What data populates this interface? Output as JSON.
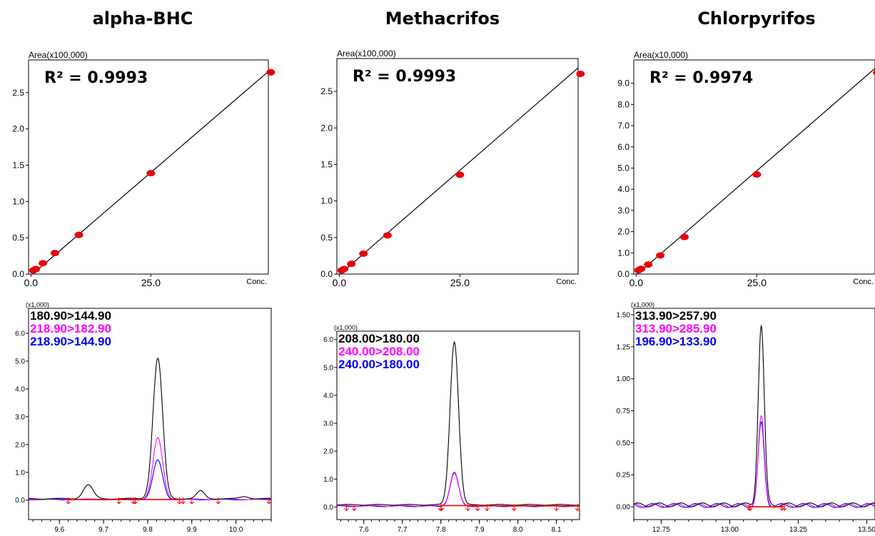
{
  "titles": [
    "alpha-BHC",
    "Methacrifos",
    "Chlorpyrifos"
  ],
  "chart_data": [
    {
      "type": "scatter",
      "panel": "calibration",
      "compound": "alpha-BHC",
      "yunit_label": "Area(x100,000)",
      "xlabel": "Conc.",
      "r2_label": "R² = 0.9993",
      "x_ticks": [
        0.0,
        25.0
      ],
      "x_tick_labels": [
        "0.0",
        "25.0"
      ],
      "y_ticks": [
        0.0,
        0.5,
        1.0,
        1.5,
        2.0,
        2.5
      ],
      "y_tick_labels": [
        "0.0",
        "0.5",
        "1.0",
        "1.5",
        "2.0",
        "2.5"
      ],
      "xlim": [
        -0.5,
        49.5
      ],
      "ylim": [
        0,
        2.95
      ],
      "points": [
        [
          0.5,
          0.05
        ],
        [
          1,
          0.07
        ],
        [
          2.5,
          0.15
        ],
        [
          5,
          0.29
        ],
        [
          10,
          0.54
        ],
        [
          25,
          1.39
        ],
        [
          50,
          2.78
        ]
      ],
      "fit_line": [
        [
          0,
          -0.02
        ],
        [
          50,
          2.82
        ]
      ],
      "colors": {
        "points": "#e8000b",
        "line": "#000000"
      }
    },
    {
      "type": "scatter",
      "panel": "calibration",
      "compound": "Methacrifos",
      "yunit_label": "Area(x100,000)",
      "xlabel": "Conc.",
      "r2_label": "R² = 0.9993",
      "x_ticks": [
        0.0,
        25.0
      ],
      "x_tick_labels": [
        "0.0",
        "25.0"
      ],
      "y_ticks": [
        0.0,
        0.5,
        1.0,
        1.5,
        2.0,
        2.5
      ],
      "y_tick_labels": [
        "0.0",
        "0.5",
        "1.0",
        "1.5",
        "2.0",
        "2.5"
      ],
      "xlim": [
        -0.5,
        49.5
      ],
      "ylim": [
        0,
        2.95
      ],
      "points": [
        [
          0.5,
          0.05
        ],
        [
          1,
          0.07
        ],
        [
          2.5,
          0.14
        ],
        [
          5,
          0.28
        ],
        [
          10,
          0.53
        ],
        [
          25,
          1.36
        ],
        [
          50,
          2.74
        ]
      ],
      "fit_line": [
        [
          0,
          -0.01
        ],
        [
          50,
          2.85
        ]
      ],
      "colors": {
        "points": "#e8000b",
        "line": "#000000"
      }
    },
    {
      "type": "scatter",
      "panel": "calibration",
      "compound": "Chlorpyrifos",
      "yunit_label": "Area(x10,000)",
      "xlabel": "Conc.",
      "r2_label": "R² = 0.9974",
      "x_ticks": [
        0.0,
        25.0
      ],
      "x_tick_labels": [
        "0.0",
        "25.0"
      ],
      "y_ticks": [
        0.0,
        1.0,
        2.0,
        3.0,
        4.0,
        5.0,
        6.0,
        7.0,
        8.0,
        9.0
      ],
      "y_tick_labels": [
        "0.0",
        "1.0",
        "2.0",
        "3.0",
        "4.0",
        "5.0",
        "6.0",
        "7.0",
        "8.0",
        "9.0"
      ],
      "xlim": [
        -0.5,
        49.5
      ],
      "ylim": [
        0,
        10.1
      ],
      "points": [
        [
          0.5,
          0.18
        ],
        [
          1,
          0.25
        ],
        [
          2.5,
          0.45
        ],
        [
          5,
          0.88
        ],
        [
          10,
          1.75
        ],
        [
          25,
          4.7
        ],
        [
          50,
          9.5
        ]
      ],
      "fit_line": [
        [
          0,
          -0.05
        ],
        [
          50,
          9.8
        ]
      ],
      "colors": {
        "points": "#e8000b",
        "line": "#000000"
      }
    },
    {
      "type": "line",
      "panel": "chromatogram",
      "compound": "alpha-BHC",
      "yunit_label": "(x1,000)",
      "x_ticks": [
        9.6,
        9.7,
        9.8,
        9.9,
        10.0
      ],
      "x_tick_labels": [
        "9.6",
        "9.7",
        "9.8",
        "9.9",
        "10.0"
      ],
      "y_ticks": [
        0.0,
        1.0,
        2.0,
        3.0,
        4.0,
        5.0,
        6.0
      ],
      "y_tick_labels": [
        "0.0",
        "1.0",
        "2.0",
        "3.0",
        "4.0",
        "5.0",
        "6.0"
      ],
      "xlim": [
        9.53,
        10.08
      ],
      "ylim": [
        -0.7,
        6.9
      ],
      "series": [
        {
          "name": "180.90>144.90",
          "color": "#000000",
          "baseline": 0.05,
          "peaks": [
            [
              9.665,
              0.5,
              0.011
            ],
            [
              9.823,
              5.05,
              0.011
            ],
            [
              9.92,
              0.28,
              0.009
            ],
            [
              10.02,
              0.08,
              0.01
            ]
          ]
        },
        {
          "name": "218.90>182.90",
          "color": "#ff00ff",
          "baseline": 0.03,
          "peaks": [
            [
              9.823,
              2.2,
              0.011
            ]
          ]
        },
        {
          "name": "218.90>144.90",
          "color": "#0000ff",
          "baseline": 0.02,
          "peaks": [
            [
              9.823,
              1.42,
              0.011
            ]
          ]
        }
      ],
      "integration_baselines": [
        [
          9.62,
          9.77,
          0.02
        ],
        [
          9.77,
          9.88,
          0.02
        ]
      ],
      "markers_x": [
        9.62,
        9.735,
        9.768,
        9.772,
        9.872,
        9.88,
        9.9,
        9.96,
        10.075
      ],
      "colors": {
        "markers": "#ff0000"
      }
    },
    {
      "type": "line",
      "panel": "chromatogram",
      "compound": "Methacrifos",
      "yunit_label": "(x1,000)",
      "x_ticks": [
        7.6,
        7.7,
        7.8,
        7.9,
        8.0,
        8.1
      ],
      "x_tick_labels": [
        "7.6",
        "7.7",
        "7.8",
        "7.9",
        "8.0",
        "8.1"
      ],
      "y_ticks": [
        0.0,
        1.0,
        2.0,
        3.0,
        4.0,
        5.0,
        6.0
      ],
      "y_tick_labels": [
        "0.0",
        "1.0",
        "2.0",
        "3.0",
        "4.0",
        "5.0",
        "6.0"
      ],
      "xlim": [
        7.53,
        8.16
      ],
      "ylim": [
        -0.45,
        6.3
      ],
      "series": [
        {
          "name": "208.00>180.00",
          "color": "#000000",
          "baseline": 0.08,
          "peaks": [
            [
              7.835,
              5.85,
              0.011
            ]
          ]
        },
        {
          "name": "240.00>208.00",
          "color": "#ff00ff",
          "baseline": 0.04,
          "peaks": [
            [
              7.835,
              1.22,
              0.011
            ]
          ]
        },
        {
          "name": "240.00>180.00",
          "color": "#0000ff",
          "baseline": 0.03,
          "peaks": [
            [
              7.835,
              1.18,
              0.011
            ]
          ]
        }
      ],
      "integration_baselines": [
        [
          7.8,
          7.91,
          0.05
        ],
        [
          7.91,
          8.16,
          0.04
        ]
      ],
      "markers_x": [
        7.555,
        7.575,
        7.799,
        7.802,
        7.87,
        7.895,
        7.92,
        7.99,
        8.1,
        8.155
      ],
      "colors": {
        "markers": "#ff0000"
      }
    },
    {
      "type": "line",
      "panel": "chromatogram",
      "compound": "Chlorpyrifos",
      "yunit_label": "(x1,000)",
      "x_ticks": [
        12.75,
        13.0,
        13.25,
        13.5
      ],
      "x_tick_labels": [
        "12.75",
        "13.00",
        "13.25",
        "13.50"
      ],
      "y_ticks": [
        0.0,
        0.25,
        0.5,
        0.75,
        1.0,
        1.25,
        1.5
      ],
      "y_tick_labels": [
        "0.00",
        "0.25",
        "0.50",
        "0.75",
        "1.00",
        "1.25",
        "1.50"
      ],
      "xlim": [
        12.65,
        13.53
      ],
      "ylim": [
        -0.1,
        1.55
      ],
      "series": [
        {
          "name": "313.90>257.90",
          "color": "#000000",
          "baseline": 0.015,
          "peaks": [
            [
              13.115,
              1.4,
              0.011
            ]
          ]
        },
        {
          "name": "313.90>285.90",
          "color": "#ff00ff",
          "baseline": 0.01,
          "peaks": [
            [
              13.115,
              0.69,
              0.011
            ]
          ]
        },
        {
          "name": "196.90>133.90",
          "color": "#0000ff",
          "baseline": 0.01,
          "peaks": [
            [
              13.115,
              0.64,
              0.011
            ]
          ]
        }
      ],
      "integration_baselines": [
        [
          13.07,
          13.2,
          0.0
        ]
      ],
      "markers_x": [
        13.07,
        13.075,
        13.19,
        13.2
      ],
      "colors": {
        "markers": "#ff0000"
      }
    }
  ]
}
